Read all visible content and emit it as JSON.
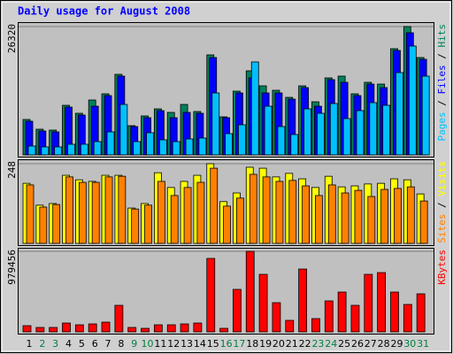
{
  "legend_separator": "/",
  "chart_data": [
    {
      "type": "bar",
      "title": "Daily usage for August 2008",
      "series": [
        {
          "name": "Hits",
          "color": "#00805c",
          "values": [
            7260,
            5264,
            5082,
            10164,
            8531,
            11254,
            12524,
            16517,
            5990,
            7986,
            9438,
            8712,
            10346,
            8894,
            20510,
            7805,
            13068,
            17243,
            14157,
            13250,
            11798,
            14157,
            10890,
            15791,
            16154,
            12524,
            14883,
            14520,
            21780,
            26320,
            19965
          ]
        },
        {
          "name": "Files",
          "color": "#0000ff",
          "values": [
            6897,
            4901,
            4719,
            9801,
            8168,
            9983,
            12161,
            16154,
            5808,
            7623,
            9075,
            7623,
            8712,
            8531,
            19965,
            7623,
            12705,
            15791,
            12705,
            12705,
            11435,
            13794,
            9983,
            15428,
            14883,
            12161,
            14520,
            13794,
            21417,
            25047,
            19602
          ]
        },
        {
          "name": "Pages",
          "color": "#00c0ff",
          "values": [
            1815,
            1634,
            1634,
            2178,
            2178,
            2723,
            4719,
            10346,
            2723,
            4538,
            3086,
            2723,
            3267,
            3449,
            12705,
            4356,
            6171,
            19058,
            9983,
            5808,
            4175,
            9438,
            8531,
            10527,
            7442,
            9075,
            10709,
            10164,
            16880,
            22325,
            16154
          ]
        }
      ],
      "ylim": [
        0,
        26320
      ],
      "yticks": [
        26320
      ],
      "grid": true,
      "legend_position": "right"
    },
    {
      "type": "bar",
      "series": [
        {
          "name": "Visits",
          "color": "#ffff00",
          "values": [
            187,
            119,
            124,
            212,
            198,
            193,
            212,
            212,
            110,
            124,
            220,
            174,
            193,
            212,
            248,
            130,
            157,
            237,
            234,
            207,
            218,
            201,
            174,
            209,
            176,
            179,
            185,
            187,
            201,
            198,
            154
          ]
        },
        {
          "name": "Sites",
          "color": "#ff8000",
          "values": [
            182,
            113,
            121,
            207,
            190,
            190,
            207,
            209,
            107,
            119,
            193,
            149,
            174,
            190,
            234,
            116,
            141,
            215,
            207,
            193,
            196,
            179,
            149,
            182,
            157,
            165,
            146,
            168,
            171,
            176,
            132
          ]
        }
      ],
      "ylim": [
        0,
        248
      ],
      "yticks": [
        248
      ],
      "grid": true,
      "legend_position": "right"
    },
    {
      "type": "bar",
      "categories": [
        "1",
        "2",
        "3",
        "4",
        "5",
        "6",
        "7",
        "8",
        "9",
        "10",
        "11",
        "12",
        "13",
        "14",
        "15",
        "16",
        "17",
        "18",
        "19",
        "20",
        "21",
        "22",
        "23",
        "24",
        "25",
        "26",
        "27",
        "28",
        "29",
        "30",
        "31"
      ],
      "category_colors": [
        "#000000",
        "#008040",
        "#008040",
        "#000000",
        "#000000",
        "#000000",
        "#000000",
        "#000000",
        "#008040",
        "#008040",
        "#000000",
        "#000000",
        "#000000",
        "#000000",
        "#000000",
        "#008040",
        "#008040",
        "#000000",
        "#000000",
        "#000000",
        "#000000",
        "#000000",
        "#008040",
        "#008040",
        "#000000",
        "#000000",
        "#000000",
        "#000000",
        "#000000",
        "#008040",
        "#008040"
      ],
      "series": [
        {
          "name": "KBytes",
          "color": "#ff0000",
          "values": [
            75341,
            53815,
            53815,
            107630,
            86104,
            96867,
            118393,
            322890,
            53815,
            43052,
            86104,
            86104,
            96867,
            107630,
            893329,
            43052,
            516624,
            979456,
            699595,
            355179,
            139919,
            764173,
            161445,
            376705,
            484335,
            322890,
            699595,
            721121,
            484335,
            333653,
            462809
          ]
        }
      ],
      "ylim": [
        0,
        979456
      ],
      "yticks": [
        979456
      ],
      "grid": true,
      "legend_position": "right"
    }
  ]
}
